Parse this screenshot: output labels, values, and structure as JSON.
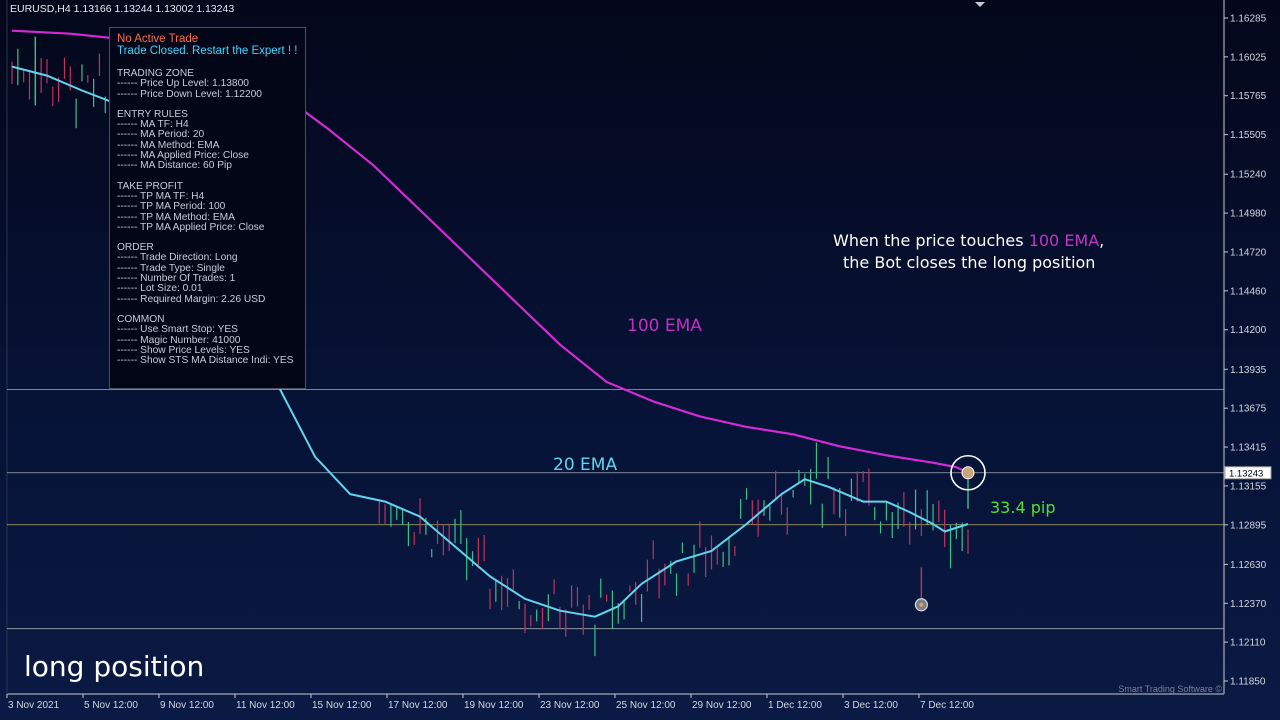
{
  "header": {
    "symbol_ohlc": "EURUSD,H4  1.13166 1.13244 1.13002 1.13243"
  },
  "status": {
    "no_trade": "No Active Trade",
    "closed": "Trade Closed. Restart the Expert ! !"
  },
  "sections": [
    {
      "title": "TRADING ZONE",
      "rows": [
        "------  Price Up Level: 1.13800",
        "------  Price Down Level: 1.12200"
      ]
    },
    {
      "title": "ENTRY RULES",
      "rows": [
        "------  MA TF: H4",
        "------  MA Period: 20",
        "------  MA Method: EMA",
        "------  MA Applied Price: Close",
        "------  MA Distance: 60 Pip"
      ]
    },
    {
      "title": "TAKE PROFIT",
      "rows": [
        "------  TP MA TF: H4",
        "------  TP MA Period: 100",
        "------  TP MA Method: EMA",
        "------  TP MA Applied Price: Close"
      ]
    },
    {
      "title": "ORDER",
      "rows": [
        "------  Trade Direction: Long",
        "------  Trade Type: Single",
        "------  Number Of Trades: 1",
        "------  Lot Size: 0.01",
        "------  Required Margin: 2.26 USD"
      ]
    },
    {
      "title": "COMMON",
      "rows": [
        "------  Use Smart Stop: YES",
        "------  Magic Number: 41000",
        "------  Show Price Levels: YES",
        "------  Show STS MA Distance Indi: YES"
      ]
    }
  ],
  "annotations": {
    "note_pre": "When the price touches ",
    "note_ema": "100 EMA",
    "note_post": ",",
    "note_line2": "the Bot closes the long position",
    "label_100": "100 EMA",
    "label_20": "20 EMA",
    "pip": "33.4 pip",
    "caption": "long position",
    "watermark": "Smart Trading Software ©",
    "current_price": "1.13243"
  },
  "colors": {
    "ema100": "#d42ad4",
    "ema20": "#5fd6ee",
    "bull": "#37c48a",
    "bear": "#c2335e",
    "pip": "#55e02a"
  },
  "chart_data": {
    "type": "line",
    "price_ticks": [
      "1.16285",
      "1.16025",
      "1.15765",
      "1.15505",
      "1.15240",
      "1.14980",
      "1.14720",
      "1.14460",
      "1.14200",
      "1.13935",
      "1.13675",
      "1.13415",
      "1.13155",
      "1.12895",
      "1.12630",
      "1.12370",
      "1.12110",
      "1.11850"
    ],
    "time_ticks": [
      "3 Nov 2021",
      "5 Nov 12:00",
      "9 Nov 12:00",
      "11 Nov 12:00",
      "15 Nov 12:00",
      "17 Nov 12:00",
      "19 Nov 12:00",
      "23 Nov 12:00",
      "25 Nov 12:00",
      "29 Nov 12:00",
      "1 Dec 12:00",
      "3 Dec 12:00",
      "7 Dec 12:00"
    ],
    "levels": [
      {
        "price": 1.138,
        "color": "#c0c4cc"
      },
      {
        "price": 1.13243,
        "color": "#c0c4cc"
      },
      {
        "price": 1.12895,
        "color": "#d9c36a"
      },
      {
        "price": 1.122,
        "color": "#c0c4cc"
      }
    ],
    "ema100": [
      [
        0,
        1.162
      ],
      [
        10,
        1.1618
      ],
      [
        20,
        1.1614
      ],
      [
        30,
        1.1608
      ],
      [
        38,
        1.1596
      ],
      [
        46,
        1.1578
      ],
      [
        54,
        1.1555
      ],
      [
        62,
        1.153
      ],
      [
        70,
        1.15
      ],
      [
        78,
        1.147
      ],
      [
        86,
        1.144
      ],
      [
        94,
        1.141
      ],
      [
        102,
        1.1385
      ],
      [
        110,
        1.1372
      ],
      [
        118,
        1.1362
      ],
      [
        126,
        1.1355
      ],
      [
        134,
        1.135
      ],
      [
        142,
        1.1342
      ],
      [
        150,
        1.1336
      ],
      [
        158,
        1.1331
      ],
      [
        162,
        1.1328
      ],
      [
        164,
        1.13244
      ]
    ],
    "ema20": [
      [
        0,
        1.1596
      ],
      [
        6,
        1.159
      ],
      [
        12,
        1.158
      ],
      [
        20,
        1.1568
      ],
      [
        28,
        1.1545
      ],
      [
        34,
        1.15
      ],
      [
        40,
        1.145
      ],
      [
        46,
        1.138
      ],
      [
        52,
        1.1335
      ],
      [
        58,
        1.131
      ],
      [
        64,
        1.1305
      ],
      [
        70,
        1.1295
      ],
      [
        76,
        1.1275
      ],
      [
        82,
        1.1255
      ],
      [
        88,
        1.124
      ],
      [
        94,
        1.1232
      ],
      [
        100,
        1.1228
      ],
      [
        104,
        1.1235
      ],
      [
        108,
        1.125
      ],
      [
        114,
        1.1265
      ],
      [
        120,
        1.1272
      ],
      [
        126,
        1.129
      ],
      [
        132,
        1.131
      ],
      [
        136,
        1.132
      ],
      [
        140,
        1.1315
      ],
      [
        146,
        1.1305
      ],
      [
        150,
        1.1305
      ],
      [
        154,
        1.1298
      ],
      [
        158,
        1.129
      ],
      [
        160,
        1.1285
      ],
      [
        164,
        1.129
      ]
    ],
    "candles": [
      {
        "name": "hist-start-bull",
        "o": 1.158,
        "h": 1.1616,
        "l": 1.157,
        "c": 1.16
      },
      {
        "name": "entry-low-bear",
        "o": 1.1256,
        "h": 1.1261,
        "l": 1.1234,
        "c": 1.1238
      },
      {
        "name": "last-bull",
        "o": 1.13166,
        "h": 1.13244,
        "l": 1.13002,
        "c": 1.13243
      }
    ],
    "markers": [
      {
        "name": "close-marker",
        "bar": 164,
        "price": 1.13243
      },
      {
        "name": "entry-marker",
        "bar": 156,
        "price": 1.1236
      }
    ]
  }
}
